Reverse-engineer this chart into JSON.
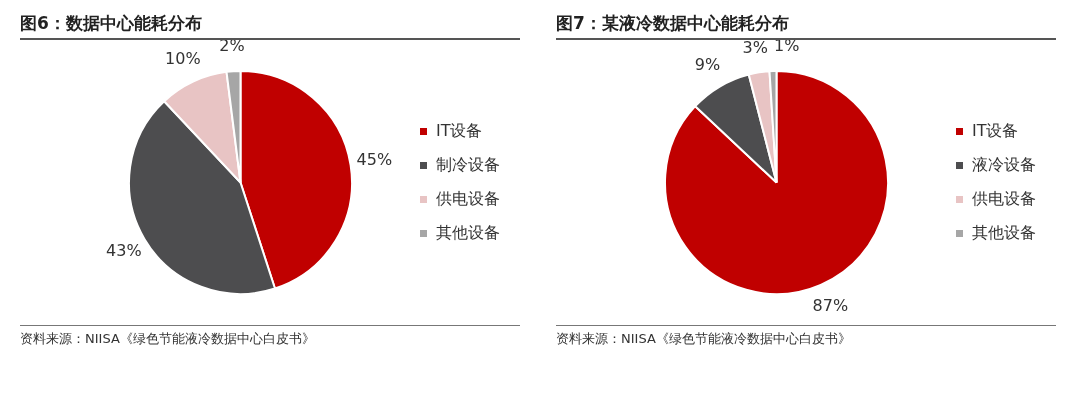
{
  "chart_data": [
    {
      "type": "pie",
      "title": "图6：数据中心能耗分布",
      "categories": [
        "IT设备",
        "制冷设备",
        "供电设备",
        "其他设备"
      ],
      "values": [
        45,
        43,
        10,
        2
      ],
      "value_labels": [
        "45%",
        "43%",
        "10%",
        "2%"
      ],
      "colors": [
        "#c00000",
        "#4d4d4f",
        "#e8c4c4",
        "#a6a6a6"
      ],
      "legend": "right",
      "annotations": [
        "资料来源：NIISA《绿色节能液冷数据中心白皮书》"
      ]
    },
    {
      "type": "pie",
      "title": "图7：某液冷数据中心能耗分布",
      "categories": [
        "IT设备",
        "液冷设备",
        "供电设备",
        "其他设备"
      ],
      "values": [
        87,
        9,
        3,
        1
      ],
      "value_labels": [
        "87%",
        "9%",
        "3%",
        "1%"
      ],
      "colors": [
        "#c00000",
        "#4d4d4f",
        "#e8c4c4",
        "#a6a6a6"
      ],
      "legend": "right",
      "annotations": [
        "资料来源：NIISA《绿色节能液冷数据中心白皮书》"
      ]
    }
  ]
}
